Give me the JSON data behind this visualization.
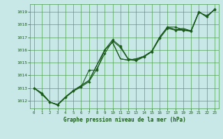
{
  "title": "Graphe pression niveau de la mer (hPa)",
  "background_color": "#c8e8e8",
  "grid_color": "#4a9a4a",
  "line_color": "#1a5a1a",
  "xlim": [
    -0.5,
    23.5
  ],
  "ylim": [
    1011.4,
    1019.6
  ],
  "yticks": [
    1012,
    1013,
    1014,
    1015,
    1016,
    1017,
    1018,
    1019
  ],
  "xticks": [
    0,
    1,
    2,
    3,
    4,
    5,
    6,
    7,
    8,
    9,
    10,
    11,
    12,
    13,
    14,
    15,
    16,
    17,
    18,
    19,
    20,
    21,
    22,
    23
  ],
  "series": [
    {
      "x": [
        0,
        1,
        2,
        3,
        4,
        5,
        6,
        7,
        8,
        9,
        10,
        11,
        12,
        13,
        14,
        15,
        16,
        17,
        18,
        19,
        20,
        21,
        22,
        23
      ],
      "y": [
        1013.0,
        1012.6,
        1011.9,
        1011.7,
        1012.3,
        1012.8,
        1013.1,
        1014.4,
        1014.4,
        1016.0,
        1016.8,
        1016.3,
        1015.3,
        1015.2,
        1015.5,
        1015.9,
        1017.0,
        1017.8,
        1017.8,
        1017.6,
        1017.5,
        1019.0,
        1018.6,
        1019.2
      ],
      "marker": true
    },
    {
      "x": [
        0,
        1,
        2,
        3,
        4,
        5,
        6,
        7,
        8,
        9,
        10,
        11,
        12,
        13,
        14,
        15,
        16,
        17,
        18,
        19,
        20,
        21,
        22,
        23
      ],
      "y": [
        1013.0,
        1012.6,
        1011.9,
        1011.7,
        1012.3,
        1012.8,
        1013.2,
        1013.6,
        1014.8,
        1016.0,
        1016.6,
        1015.3,
        1015.2,
        1015.3,
        1015.5,
        1015.9,
        1017.0,
        1017.8,
        1017.6,
        1017.6,
        1017.5,
        1019.0,
        1018.6,
        1019.2
      ],
      "marker": false
    },
    {
      "x": [
        0,
        1,
        2,
        3,
        4,
        5,
        6,
        7,
        8,
        9,
        10,
        11,
        12,
        13,
        14,
        15,
        16,
        17,
        18,
        19,
        20,
        21,
        22,
        23
      ],
      "y": [
        1013.0,
        1012.6,
        1011.9,
        1011.7,
        1012.3,
        1012.8,
        1013.2,
        1013.6,
        1014.8,
        1016.0,
        1016.6,
        1015.3,
        1015.2,
        1015.3,
        1015.5,
        1015.9,
        1017.0,
        1017.8,
        1017.6,
        1017.7,
        1017.5,
        1019.0,
        1018.6,
        1019.2
      ],
      "marker": false
    },
    {
      "x": [
        0,
        1,
        2,
        3,
        4,
        5,
        6,
        7,
        8,
        9,
        10,
        11,
        12,
        13,
        14,
        15,
        16,
        17,
        18,
        19,
        20,
        21,
        22,
        23
      ],
      "y": [
        1013.0,
        1012.5,
        1011.9,
        1011.65,
        1012.25,
        1012.75,
        1013.1,
        1013.5,
        1014.5,
        1015.7,
        1016.7,
        1016.2,
        1015.25,
        1015.15,
        1015.45,
        1015.85,
        1016.9,
        1017.7,
        1017.55,
        1017.55,
        1017.45,
        1018.95,
        1018.7,
        1019.15
      ],
      "marker": true
    }
  ]
}
